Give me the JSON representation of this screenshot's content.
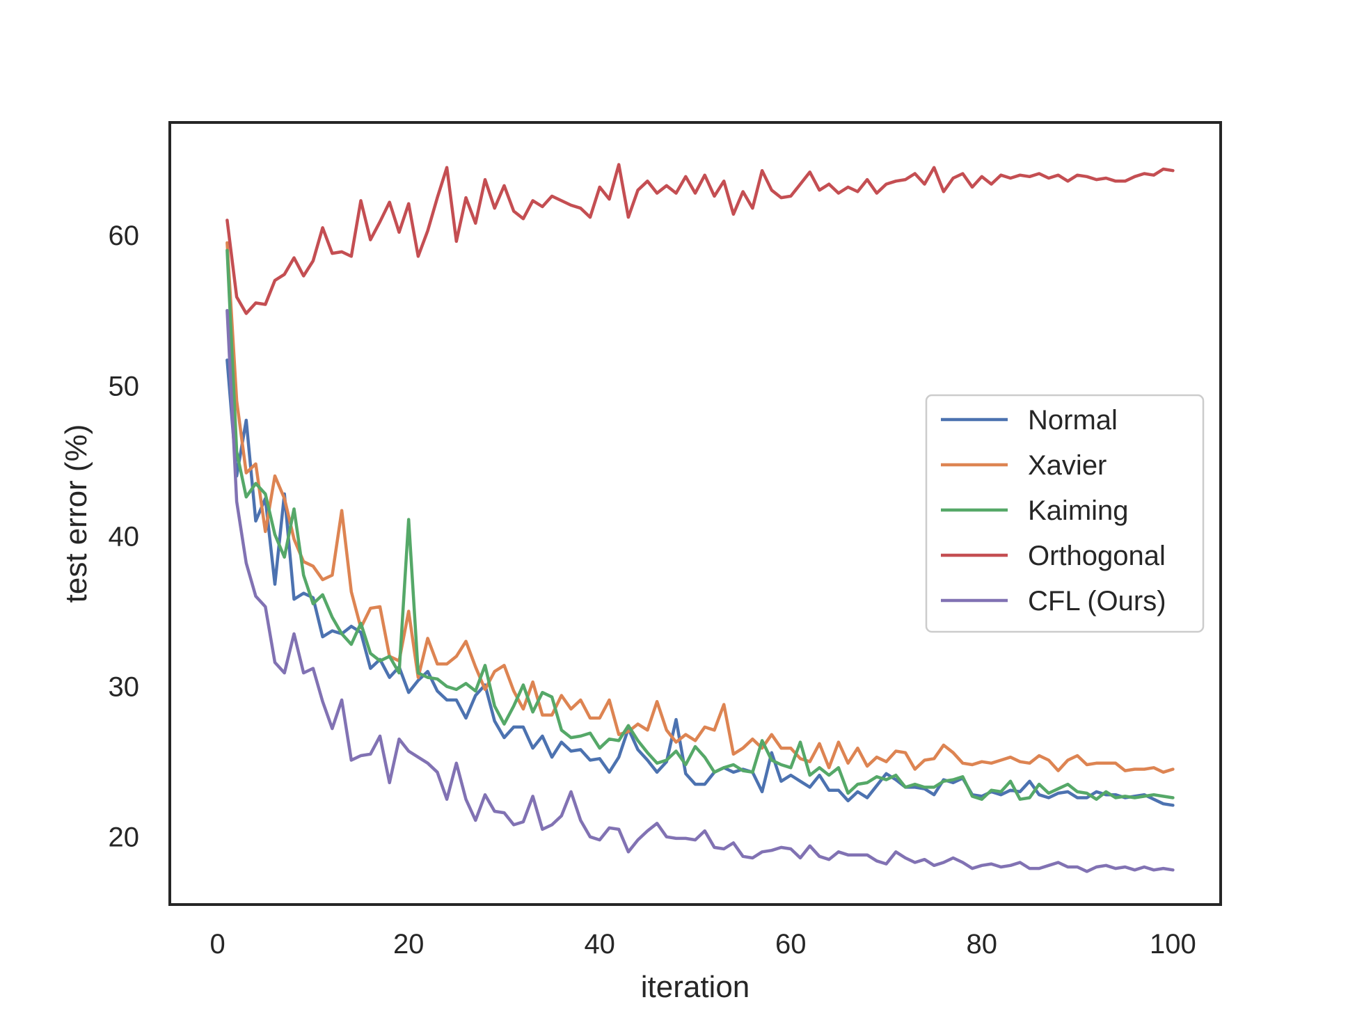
{
  "chart_data": {
    "type": "line",
    "title": "",
    "xlabel": "iteration",
    "ylabel": "test error (%)",
    "xlim": [
      -5,
      105
    ],
    "ylim": [
      15.5,
      67.5
    ],
    "xticks": [
      0,
      20,
      40,
      60,
      80,
      100
    ],
    "yticks": [
      20,
      30,
      40,
      50,
      60
    ],
    "xtick_labels": [
      "0",
      "20",
      "40",
      "60",
      "80",
      "100"
    ],
    "ytick_labels": [
      "20",
      "30",
      "40",
      "50",
      "60"
    ],
    "grid": false,
    "legend_position": "center-right",
    "x": [
      1,
      2,
      3,
      4,
      5,
      6,
      7,
      8,
      9,
      10,
      11,
      12,
      13,
      14,
      15,
      16,
      17,
      18,
      19,
      20,
      21,
      22,
      23,
      24,
      25,
      26,
      27,
      28,
      29,
      30,
      31,
      32,
      33,
      34,
      35,
      36,
      37,
      38,
      39,
      40,
      41,
      42,
      43,
      44,
      45,
      46,
      47,
      48,
      49,
      50,
      51,
      52,
      53,
      54,
      55,
      56,
      57,
      58,
      59,
      60,
      61,
      62,
      63,
      64,
      65,
      66,
      67,
      68,
      69,
      70,
      71,
      72,
      73,
      74,
      75,
      76,
      77,
      78,
      79,
      80,
      81,
      82,
      83,
      84,
      85,
      86,
      87,
      88,
      89,
      90,
      91,
      92,
      93,
      94,
      95,
      96,
      97,
      98,
      99,
      100
    ],
    "series": [
      {
        "name": "Normal",
        "color": "#4c72b0",
        "values": [
          51.7,
          44.0,
          47.7,
          41.0,
          42.5,
          36.8,
          42.8,
          35.8,
          36.2,
          35.9,
          33.3,
          33.7,
          33.5,
          34.0,
          33.6,
          31.2,
          31.8,
          30.6,
          31.3,
          29.6,
          30.4,
          31.0,
          29.7,
          29.1,
          29.1,
          27.9,
          29.4,
          30.1,
          27.7,
          26.6,
          27.3,
          27.3,
          25.9,
          26.7,
          25.3,
          26.3,
          25.7,
          25.8,
          25.1,
          25.2,
          24.3,
          25.3,
          27.2,
          25.8,
          25.1,
          24.3,
          25.0,
          27.8,
          24.2,
          23.5,
          23.5,
          24.3,
          24.6,
          24.3,
          24.5,
          24.3,
          23.0,
          25.6,
          23.7,
          24.1,
          23.7,
          23.3,
          24.1,
          23.1,
          23.1,
          22.4,
          23.0,
          22.6,
          23.4,
          24.2,
          23.8,
          23.3,
          23.3,
          23.2,
          22.8,
          23.8,
          23.6,
          23.9,
          22.8,
          22.7,
          23.0,
          22.8,
          23.1,
          23.0,
          23.7,
          22.8,
          22.6,
          22.9,
          23.0,
          22.6,
          22.6,
          23.0,
          22.8,
          22.8,
          22.6,
          22.7,
          22.8,
          22.5,
          22.2,
          22.1
        ]
      },
      {
        "name": "Xavier",
        "color": "#dd8452",
        "values": [
          59.5,
          49.0,
          44.2,
          44.8,
          40.3,
          44.0,
          42.5,
          39.8,
          38.3,
          38.0,
          37.1,
          37.4,
          41.7,
          36.3,
          33.9,
          35.2,
          35.3,
          32.0,
          31.7,
          35.0,
          30.6,
          33.2,
          31.5,
          31.5,
          32.0,
          33.0,
          31.3,
          29.8,
          31.0,
          31.4,
          29.7,
          28.5,
          30.3,
          28.1,
          28.1,
          29.4,
          28.5,
          29.1,
          27.9,
          27.9,
          29.1,
          26.8,
          27.0,
          27.5,
          27.1,
          29.0,
          27.1,
          26.3,
          26.8,
          26.4,
          27.3,
          27.1,
          28.8,
          25.5,
          25.9,
          26.5,
          25.9,
          26.8,
          25.9,
          25.9,
          25.2,
          25.0,
          26.2,
          24.6,
          26.3,
          24.9,
          25.9,
          24.7,
          25.3,
          25.0,
          25.7,
          25.6,
          24.5,
          25.1,
          25.2,
          26.1,
          25.6,
          24.9,
          24.8,
          25.0,
          24.9,
          25.1,
          25.3,
          25.0,
          24.9,
          25.4,
          25.1,
          24.4,
          25.1,
          25.4,
          24.8,
          24.9,
          24.9,
          24.9,
          24.4,
          24.5,
          24.5,
          24.6,
          24.3,
          24.5
        ]
      },
      {
        "name": "Kaiming",
        "color": "#55a868",
        "values": [
          59.0,
          45.6,
          42.6,
          43.5,
          42.8,
          40.1,
          38.6,
          41.8,
          37.4,
          35.5,
          36.1,
          34.6,
          33.5,
          32.8,
          34.2,
          32.2,
          31.7,
          32.0,
          30.9,
          41.1,
          30.9,
          30.6,
          30.5,
          30.0,
          29.8,
          30.2,
          29.7,
          31.4,
          28.7,
          27.5,
          28.7,
          30.1,
          28.3,
          29.6,
          29.3,
          27.1,
          26.6,
          26.7,
          26.9,
          25.9,
          26.5,
          26.4,
          27.4,
          26.4,
          25.6,
          24.9,
          25.1,
          25.7,
          24.8,
          26.0,
          25.3,
          24.3,
          24.6,
          24.8,
          24.4,
          24.3,
          26.4,
          25.1,
          24.8,
          24.6,
          26.3,
          24.1,
          24.6,
          24.1,
          24.6,
          22.9,
          23.5,
          23.6,
          24.0,
          23.8,
          24.1,
          23.3,
          23.5,
          23.3,
          23.3,
          23.7,
          23.8,
          24.0,
          22.7,
          22.5,
          23.1,
          23.0,
          23.7,
          22.5,
          22.6,
          23.5,
          22.9,
          23.2,
          23.5,
          23.0,
          22.9,
          22.5,
          23.0,
          22.6,
          22.7,
          22.6,
          22.7,
          22.8,
          22.7,
          22.6
        ]
      },
      {
        "name": "Orthogonal",
        "color": "#c44e52",
        "values": [
          61.0,
          55.9,
          54.8,
          55.5,
          55.4,
          57.0,
          57.4,
          58.5,
          57.3,
          58.3,
          60.5,
          58.8,
          58.9,
          58.6,
          62.3,
          59.7,
          60.9,
          62.2,
          60.2,
          62.1,
          58.6,
          60.3,
          62.5,
          64.5,
          59.6,
          62.5,
          60.8,
          63.7,
          61.8,
          63.3,
          61.6,
          61.1,
          62.3,
          61.9,
          62.6,
          62.3,
          62.0,
          61.8,
          61.2,
          63.2,
          62.4,
          64.7,
          61.2,
          63.0,
          63.6,
          62.8,
          63.3,
          62.8,
          63.9,
          62.8,
          64.0,
          62.6,
          63.6,
          61.4,
          62.9,
          61.8,
          64.3,
          63.0,
          62.5,
          62.6,
          63.4,
          64.2,
          63.0,
          63.4,
          62.8,
          63.2,
          62.9,
          63.7,
          62.8,
          63.4,
          63.6,
          63.7,
          64.1,
          63.4,
          64.5,
          62.9,
          63.8,
          64.1,
          63.2,
          63.9,
          63.4,
          64.0,
          63.8,
          64.0,
          63.9,
          64.1,
          63.8,
          64.0,
          63.6,
          64.0,
          63.9,
          63.7,
          63.8,
          63.6,
          63.6,
          63.9,
          64.1,
          64.0,
          64.4,
          64.3
        ]
      },
      {
        "name": "CFL (Ours)",
        "color": "#8172b3",
        "values": [
          55.0,
          42.3,
          38.2,
          36.0,
          35.3,
          31.6,
          30.9,
          33.5,
          30.9,
          31.2,
          29.0,
          27.2,
          29.1,
          25.1,
          25.4,
          25.5,
          26.7,
          23.6,
          26.5,
          25.7,
          25.3,
          24.9,
          24.3,
          22.5,
          24.9,
          22.5,
          21.1,
          22.8,
          21.7,
          21.6,
          20.8,
          21.0,
          22.7,
          20.5,
          20.8,
          21.4,
          23.0,
          21.1,
          20.0,
          19.8,
          20.6,
          20.5,
          19.0,
          19.8,
          20.4,
          20.9,
          20.0,
          19.9,
          19.9,
          19.8,
          20.4,
          19.3,
          19.2,
          19.6,
          18.7,
          18.6,
          19.0,
          19.1,
          19.3,
          19.2,
          18.6,
          19.4,
          18.7,
          18.5,
          19.0,
          18.8,
          18.8,
          18.8,
          18.4,
          18.2,
          19.0,
          18.6,
          18.3,
          18.5,
          18.1,
          18.3,
          18.6,
          18.3,
          17.9,
          18.1,
          18.2,
          18.0,
          18.1,
          18.3,
          17.9,
          17.9,
          18.1,
          18.3,
          18.0,
          18.0,
          17.7,
          18.0,
          18.1,
          17.9,
          18.0,
          17.8,
          18.0,
          17.8,
          17.9,
          17.8
        ]
      }
    ]
  }
}
